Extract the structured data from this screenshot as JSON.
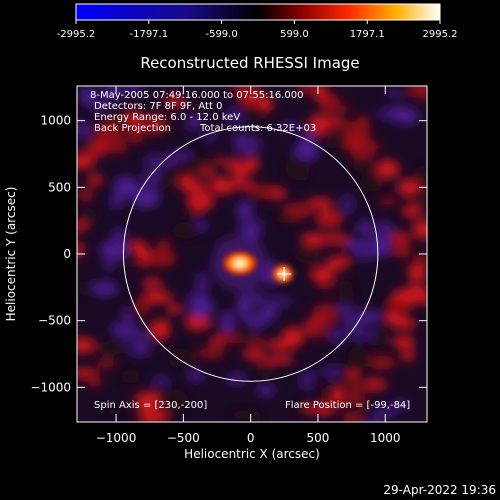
{
  "colorbar": {
    "ticks": [
      "-2995.2",
      "-1797.1",
      "-599.0",
      "599.0",
      "1797.1",
      "2995.2"
    ]
  },
  "chart_data": {
    "type": "heatmap",
    "title": "Reconstructed RHESSI Image",
    "xlabel": "Heliocentric X (arcsec)",
    "ylabel": "Heliocentric Y (arcsec)",
    "xlim": [
      -1290,
      1310
    ],
    "ylim": [
      -1260,
      1260
    ],
    "xticks": [
      -1000,
      -500,
      0,
      500,
      1000
    ],
    "yticks": [
      1000,
      500,
      0,
      -500,
      -1000
    ],
    "xtick_labels": [
      "−1000",
      "−500",
      "0",
      "500",
      "1000"
    ],
    "ytick_labels": [
      "1000",
      "500",
      "0",
      "−500",
      "−1000"
    ],
    "value_range": [
      -2995.2,
      2995.2
    ],
    "sun_limb_radius": 945,
    "sources": [
      {
        "x": -80,
        "y": -70,
        "peak": 2995.2
      },
      {
        "x": 240,
        "y": -150,
        "peak": 1800
      }
    ],
    "flare_marker": {
      "x": 250,
      "y": -150
    },
    "annotations": {
      "time": "8-May-2005 07:49:16.000 to 07:55:16.000",
      "detectors": "Detectors: 7F 8F 9F, Att 0",
      "energy": "Energy Range: 6.0 - 12.0 keV",
      "method": "Back Projection",
      "counts": "Total counts: 6.32E+03",
      "spin_axis": "Spin Axis = [230,-200]",
      "flare_position": "Flare Position = [-99,-84]"
    }
  },
  "footer": {
    "timestamp": "29-Apr-2022 19:36"
  }
}
